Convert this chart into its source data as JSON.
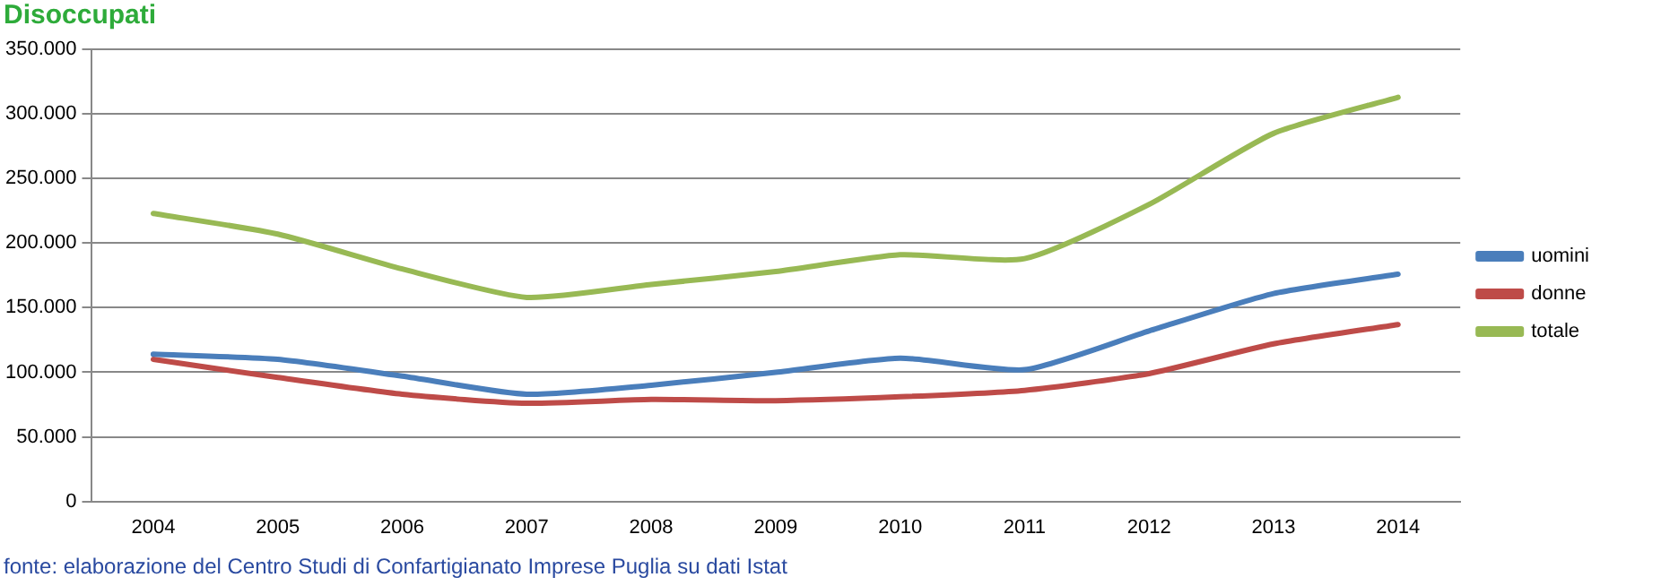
{
  "chart_data": {
    "type": "line",
    "title": "Disoccupati",
    "categories": [
      "2004",
      "2005",
      "2006",
      "2007",
      "2008",
      "2009",
      "2010",
      "2011",
      "2012",
      "2013",
      "2014"
    ],
    "series": [
      {
        "name": "uomini",
        "color": "#4a7ebb",
        "values": [
          114000,
          110000,
          97000,
          83000,
          90000,
          100000,
          111000,
          102000,
          132000,
          161000,
          176000
        ]
      },
      {
        "name": "donne",
        "color": "#be4b48",
        "values": [
          110000,
          96000,
          83000,
          76000,
          79000,
          78000,
          81000,
          86000,
          99000,
          122000,
          137000
        ]
      },
      {
        "name": "totale",
        "color": "#98b954",
        "values": [
          223000,
          207000,
          180000,
          158000,
          168000,
          178000,
          191000,
          188000,
          230000,
          285000,
          313000
        ]
      }
    ],
    "ylim": [
      0,
      350000
    ],
    "yticks": [
      {
        "value": 0,
        "label": "0"
      },
      {
        "value": 50000,
        "label": "50.000"
      },
      {
        "value": 100000,
        "label": "100.000"
      },
      {
        "value": 150000,
        "label": "150.000"
      },
      {
        "value": 200000,
        "label": "200.000"
      },
      {
        "value": 250000,
        "label": "250.000"
      },
      {
        "value": 300000,
        "label": "300.000"
      },
      {
        "value": 350000,
        "label": "350.000"
      }
    ],
    "grid": "y",
    "legend": "right",
    "marker": "none",
    "line_style": "solid",
    "annotations": [
      "fonte: elaborazione del Centro Studi di Confartigianato Imprese Puglia su dati Istat"
    ]
  }
}
